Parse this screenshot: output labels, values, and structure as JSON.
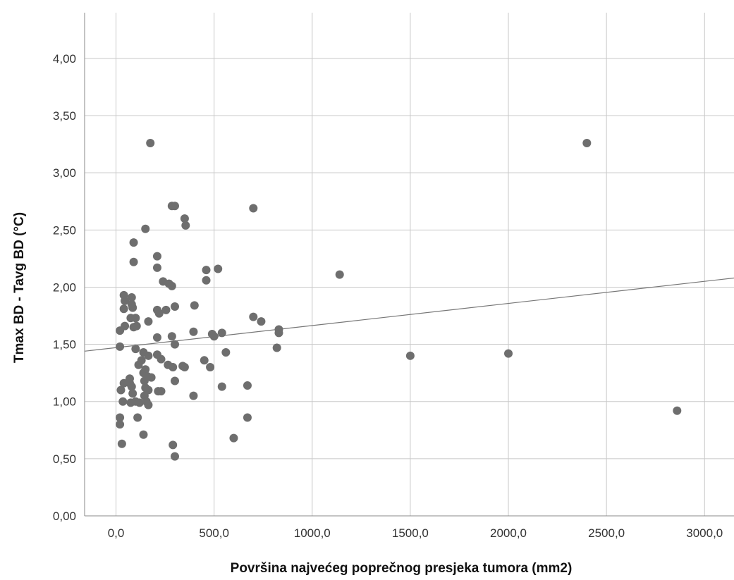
{
  "chart_data": {
    "type": "scatter",
    "title": "",
    "xlabel": "Površina najvećeg poprečnog presjeka tumora (mm2)",
    "ylabel": "Tmax BD - Tavg BD (°C)",
    "xlim": [
      -160,
      3150
    ],
    "ylim": [
      0,
      4.4
    ],
    "xticks": [
      0,
      500,
      1000,
      1500,
      2000,
      2500,
      3000
    ],
    "xtick_labels": [
      "0,0",
      "500,0",
      "1000,0",
      "1500,0",
      "2000,0",
      "2500,0",
      "3000,0"
    ],
    "yticks": [
      0,
      0.5,
      1.0,
      1.5,
      2.0,
      2.5,
      3.0,
      3.5,
      4.0
    ],
    "ytick_labels": [
      "0,00",
      "0,50",
      "1,00",
      "1,50",
      "2,00",
      "2,50",
      "3,00",
      "3,50",
      "4,00"
    ],
    "grid": true,
    "point_color": "#6e6e6e",
    "fit_line_color": "#777777",
    "fit_line": {
      "x": [
        -160,
        3150
      ],
      "y": [
        1.44,
        2.08
      ]
    },
    "points": [
      [
        175,
        3.26
      ],
      [
        2400,
        3.26
      ],
      [
        285,
        2.71
      ],
      [
        300,
        2.71
      ],
      [
        700,
        2.69
      ],
      [
        350,
        2.6
      ],
      [
        355,
        2.54
      ],
      [
        150,
        2.51
      ],
      [
        90,
        2.39
      ],
      [
        210,
        2.27
      ],
      [
        90,
        2.22
      ],
      [
        210,
        2.17
      ],
      [
        460,
        2.15
      ],
      [
        520,
        2.16
      ],
      [
        1140,
        2.11
      ],
      [
        460,
        2.06
      ],
      [
        240,
        2.05
      ],
      [
        270,
        2.03
      ],
      [
        285,
        2.01
      ],
      [
        40,
        1.93
      ],
      [
        80,
        1.91
      ],
      [
        45,
        1.88
      ],
      [
        80,
        1.85
      ],
      [
        40,
        1.81
      ],
      [
        85,
        1.82
      ],
      [
        300,
        1.83
      ],
      [
        400,
        1.84
      ],
      [
        210,
        1.8
      ],
      [
        255,
        1.8
      ],
      [
        220,
        1.77
      ],
      [
        75,
        1.73
      ],
      [
        100,
        1.73
      ],
      [
        165,
        1.7
      ],
      [
        700,
        1.74
      ],
      [
        740,
        1.7
      ],
      [
        45,
        1.66
      ],
      [
        90,
        1.65
      ],
      [
        105,
        1.66
      ],
      [
        20,
        1.62
      ],
      [
        830,
        1.63
      ],
      [
        830,
        1.6
      ],
      [
        395,
        1.61
      ],
      [
        490,
        1.59
      ],
      [
        500,
        1.57
      ],
      [
        540,
        1.6
      ],
      [
        210,
        1.56
      ],
      [
        285,
        1.57
      ],
      [
        300,
        1.5
      ],
      [
        20,
        1.48
      ],
      [
        820,
        1.47
      ],
      [
        100,
        1.46
      ],
      [
        560,
        1.43
      ],
      [
        140,
        1.43
      ],
      [
        165,
        1.4
      ],
      [
        210,
        1.41
      ],
      [
        230,
        1.37
      ],
      [
        130,
        1.36
      ],
      [
        115,
        1.32
      ],
      [
        265,
        1.32
      ],
      [
        290,
        1.3
      ],
      [
        340,
        1.31
      ],
      [
        350,
        1.3
      ],
      [
        450,
        1.36
      ],
      [
        480,
        1.3
      ],
      [
        1500,
        1.4
      ],
      [
        2000,
        1.42
      ],
      [
        150,
        1.28
      ],
      [
        140,
        1.25
      ],
      [
        160,
        1.22
      ],
      [
        180,
        1.21
      ],
      [
        145,
        1.18
      ],
      [
        70,
        1.2
      ],
      [
        70,
        1.16
      ],
      [
        40,
        1.16
      ],
      [
        300,
        1.18
      ],
      [
        25,
        1.1
      ],
      [
        80,
        1.13
      ],
      [
        150,
        1.12
      ],
      [
        165,
        1.1
      ],
      [
        215,
        1.09
      ],
      [
        230,
        1.09
      ],
      [
        540,
        1.13
      ],
      [
        670,
        1.14
      ],
      [
        85,
        1.07
      ],
      [
        145,
        1.05
      ],
      [
        395,
        1.05
      ],
      [
        35,
        1.0
      ],
      [
        75,
        0.99
      ],
      [
        100,
        1.0
      ],
      [
        120,
        0.99
      ],
      [
        155,
        1.0
      ],
      [
        165,
        0.97
      ],
      [
        20,
        0.86
      ],
      [
        20,
        0.8
      ],
      [
        110,
        0.86
      ],
      [
        670,
        0.86
      ],
      [
        2860,
        0.92
      ],
      [
        140,
        0.71
      ],
      [
        30,
        0.63
      ],
      [
        290,
        0.62
      ],
      [
        600,
        0.68
      ],
      [
        300,
        0.52
      ]
    ]
  }
}
